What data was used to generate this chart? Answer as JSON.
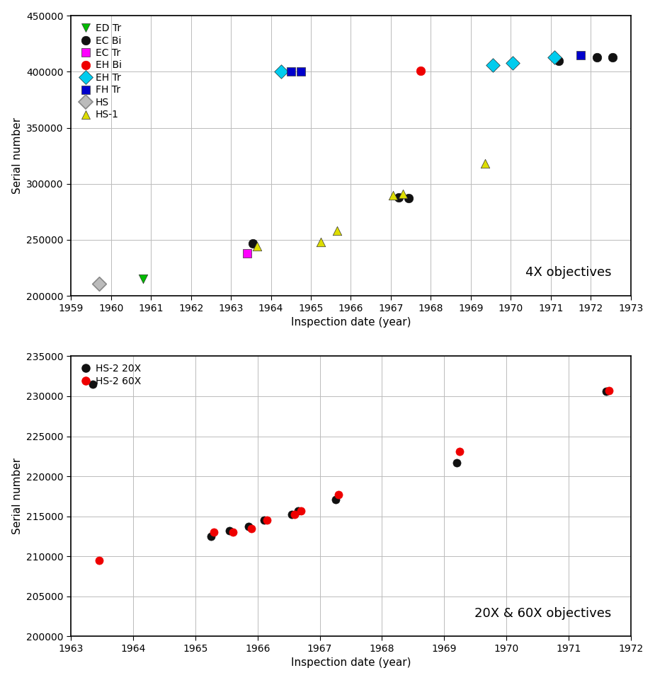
{
  "top_plot": {
    "title_text": "4X objectives",
    "xlabel": "Inspection date (year)",
    "ylabel": "Serial number",
    "xlim": [
      1959,
      1973
    ],
    "ylim": [
      200000,
      450000
    ],
    "xticks": [
      1959,
      1960,
      1961,
      1962,
      1963,
      1964,
      1965,
      1966,
      1967,
      1968,
      1969,
      1970,
      1971,
      1972,
      1973
    ],
    "yticks": [
      200000,
      250000,
      300000,
      350000,
      400000,
      450000
    ],
    "series": {
      "ED Tr": {
        "color": "#00bb00",
        "marker": "v",
        "markersize": 9,
        "points": [
          [
            1960.8,
            215000
          ]
        ]
      },
      "EC Bi": {
        "color": "#111111",
        "marker": "o",
        "markersize": 9,
        "points": [
          [
            1963.55,
            247000
          ],
          [
            1967.2,
            288000
          ],
          [
            1967.45,
            287500
          ],
          [
            1971.2,
            410000
          ],
          [
            1972.15,
            413000
          ],
          [
            1972.55,
            413000
          ]
        ]
      },
      "EC Tr": {
        "color": "#ff00ff",
        "marker": "s",
        "markersize": 8,
        "points": [
          [
            1963.4,
            238000
          ]
        ]
      },
      "EH Bi": {
        "color": "#ee0000",
        "marker": "o",
        "markersize": 9,
        "points": [
          [
            1967.75,
            401000
          ]
        ]
      },
      "EH Tr": {
        "color": "#00ccee",
        "marker": "D",
        "markersize": 10,
        "points": [
          [
            1964.25,
            400000
          ],
          [
            1969.55,
            406000
          ],
          [
            1970.05,
            408000
          ],
          [
            1971.1,
            413000
          ]
        ]
      },
      "FH Tr": {
        "color": "#0000cc",
        "marker": "s",
        "markersize": 9,
        "points": [
          [
            1964.5,
            400500
          ],
          [
            1964.75,
            400000
          ],
          [
            1971.75,
            415000
          ]
        ]
      },
      "HS": {
        "color": "#bbbbbb",
        "edgecolor": "#888888",
        "marker": "D",
        "markersize": 10,
        "points": [
          [
            1959.7,
            211000
          ]
        ]
      },
      "HS-1": {
        "color": "#dddd00",
        "marker": "^",
        "markersize": 9,
        "points": [
          [
            1963.65,
            244000
          ],
          [
            1965.25,
            248000
          ],
          [
            1965.65,
            258000
          ],
          [
            1967.05,
            289500
          ],
          [
            1967.3,
            291000
          ],
          [
            1969.35,
            318000
          ]
        ]
      }
    },
    "legend_order": [
      "ED Tr",
      "EC Bi",
      "EC Tr",
      "EH Bi",
      "EH Tr",
      "FH Tr",
      "HS",
      "HS-1"
    ]
  },
  "bottom_plot": {
    "title_text": "20X & 60X objectives",
    "xlabel": "Inspection date (year)",
    "ylabel": "Serial number",
    "xlim": [
      1963,
      1972
    ],
    "ylim": [
      200000,
      235000
    ],
    "xticks": [
      1963,
      1964,
      1965,
      1966,
      1967,
      1968,
      1969,
      1970,
      1971,
      1972
    ],
    "yticks": [
      200000,
      205000,
      210000,
      215000,
      220000,
      225000,
      230000,
      235000
    ],
    "series": {
      "HS-2 20X": {
        "color": "#111111",
        "marker": "o",
        "markersize": 8,
        "points": [
          [
            1963.35,
            231500
          ],
          [
            1965.25,
            212500
          ],
          [
            1965.55,
            213200
          ],
          [
            1965.85,
            213700
          ],
          [
            1966.1,
            214500
          ],
          [
            1966.55,
            215200
          ],
          [
            1966.65,
            215700
          ],
          [
            1967.25,
            217100
          ],
          [
            1969.2,
            221700
          ],
          [
            1971.6,
            230600
          ]
        ]
      },
      "HS-2 60X": {
        "color": "#ee0000",
        "marker": "o",
        "markersize": 8,
        "points": [
          [
            1963.45,
            209500
          ],
          [
            1965.3,
            213000
          ],
          [
            1965.6,
            213000
          ],
          [
            1965.9,
            213500
          ],
          [
            1966.15,
            214500
          ],
          [
            1966.6,
            215200
          ],
          [
            1966.7,
            215700
          ],
          [
            1967.3,
            217700
          ],
          [
            1969.25,
            223100
          ],
          [
            1971.65,
            230700
          ]
        ]
      }
    }
  },
  "background_color": "#ffffff",
  "grid_color": "#bbbbbb",
  "spine_color": "#000000"
}
